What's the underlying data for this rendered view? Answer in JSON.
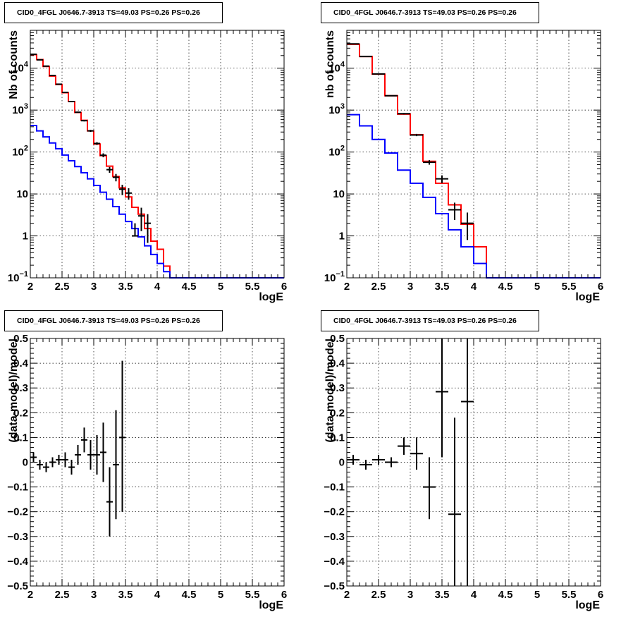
{
  "chart_data": [
    {
      "type": "line",
      "title": "CID0_4FGL J0646.7-3913 TS=49.03 PS=0.26 PS=0.26",
      "xlabel": "logE",
      "ylabel": "Nb of counts",
      "log_y": true,
      "xlim": [
        2,
        6
      ],
      "ylim": [
        0.1,
        80000
      ],
      "grid": true,
      "xticks": [
        "2",
        "2.5",
        "3",
        "3.5",
        "4",
        "4.5",
        "5",
        "5.5",
        "6"
      ],
      "yticks": [
        {
          "v": 0.1,
          "label": "10",
          "sup": "−1"
        },
        {
          "v": 1,
          "label": "1"
        },
        {
          "v": 10,
          "label": "10"
        },
        {
          "v": 100,
          "label": "10",
          "sup": "2"
        },
        {
          "v": 1000,
          "label": "10",
          "sup": "3"
        },
        {
          "v": 10000,
          "label": "10",
          "sup": "4"
        }
      ],
      "series": [
        {
          "style": "step",
          "color": "#ff0000",
          "bin_edges": [
            2,
            2.1,
            2.2,
            2.3,
            2.4,
            2.5,
            2.6,
            2.7,
            2.8,
            2.9,
            3.0,
            3.1,
            3.2,
            3.3,
            3.4,
            3.5,
            3.6,
            3.7,
            3.8,
            3.9,
            4.0,
            4.1,
            4.2,
            4.3,
            4.4,
            4.5,
            4.6,
            4.7,
            4.8,
            4.9,
            5.0,
            5.1,
            5.2,
            5.3,
            5.4,
            5.5,
            5.6,
            5.7,
            5.8,
            5.9,
            6.0
          ],
          "values": [
            21000,
            16000,
            11000,
            6500,
            4100,
            2600,
            1600,
            880,
            570,
            320,
            155,
            82,
            46,
            26,
            14,
            8.5,
            4.8,
            3.3,
            1.5,
            0.75,
            0.48,
            0.19,
            0.1,
            0.05,
            0.05,
            0.05,
            0.05,
            0.05,
            0.05,
            0.05,
            0.05,
            0.05,
            0.05,
            0.05,
            0.05,
            0.05,
            0.05,
            0.05,
            0.05,
            0.05
          ]
        },
        {
          "style": "step",
          "color": "#0000ff",
          "bin_edges": [
            2,
            2.1,
            2.2,
            2.3,
            2.4,
            2.5,
            2.6,
            2.7,
            2.8,
            2.9,
            3.0,
            3.1,
            3.2,
            3.3,
            3.4,
            3.5,
            3.6,
            3.7,
            3.8,
            3.9,
            4.0,
            4.1,
            4.2,
            4.3,
            4.4,
            4.5,
            4.6,
            4.7,
            4.8,
            4.9,
            5.0,
            5.1,
            5.2,
            5.3,
            5.4,
            5.5,
            5.6,
            5.7,
            5.8,
            5.9,
            6.0
          ],
          "values": [
            430,
            320,
            230,
            165,
            120,
            85,
            62,
            45,
            32,
            23,
            16,
            11,
            7.5,
            5,
            3.3,
            2.2,
            1.5,
            0.95,
            0.58,
            0.36,
            0.22,
            0.14,
            0.1,
            0.1,
            0.1,
            0.1,
            0.1,
            0.1,
            0.1,
            0.1,
            0.1,
            0.1,
            0.1,
            0.1,
            0.1,
            0.1,
            0.1,
            0.1,
            0.1,
            0.1
          ]
        },
        {
          "style": "points",
          "color": "#000000",
          "xerr": 0.05,
          "x": [
            2.05,
            2.15,
            2.25,
            2.35,
            2.45,
            2.55,
            2.65,
            2.75,
            2.85,
            2.95,
            3.05,
            3.15,
            3.25,
            3.35,
            3.45,
            3.55,
            3.65,
            3.75,
            3.85
          ],
          "y": [
            21500,
            15800,
            11200,
            6700,
            4150,
            2650,
            1600,
            890,
            560,
            320,
            160,
            84,
            38,
            25,
            13,
            10.5,
            1,
            3,
            2
          ],
          "err_lo": [
            21300,
            15650,
            11090,
            6620,
            4085,
            2600,
            1560,
            860,
            537,
            302,
            148,
            75,
            32,
            20,
            9.4,
            7.3,
            1,
            1.3,
            0.68
          ],
          "err_hi": [
            21700,
            15950,
            11310,
            6780,
            4215,
            2700,
            1640,
            920,
            583,
            338,
            172,
            93,
            44,
            30,
            16.6,
            13.7,
            2,
            4.7,
            3.3
          ]
        }
      ]
    },
    {
      "type": "line",
      "title": "CID0_4FGL J0646.7-3913 TS=49.03 PS=0.26 PS=0.26",
      "xlabel": "logE",
      "ylabel": "nb of counts",
      "log_y": true,
      "xlim": [
        2,
        6
      ],
      "ylim": [
        0.1,
        80000
      ],
      "grid": true,
      "xticks": [
        "2",
        "2.5",
        "3",
        "3.5",
        "4",
        "4.5",
        "5",
        "5.5",
        "6"
      ],
      "yticks": [
        {
          "v": 0.1,
          "label": "10",
          "sup": "−1"
        },
        {
          "v": 1,
          "label": "1"
        },
        {
          "v": 10,
          "label": "10"
        },
        {
          "v": 100,
          "label": "10",
          "sup": "2"
        },
        {
          "v": 1000,
          "label": "10",
          "sup": "3"
        },
        {
          "v": 10000,
          "label": "10",
          "sup": "4"
        }
      ],
      "series": [
        {
          "style": "step",
          "color": "#ff0000",
          "bin_edges": [
            2,
            2.2,
            2.4,
            2.6,
            2.8,
            3.0,
            3.2,
            3.4,
            3.6,
            3.8,
            4.0,
            4.2,
            4.4,
            4.6,
            4.8,
            5.0,
            5.2,
            5.4,
            5.6,
            5.8,
            6.0
          ],
          "values": [
            37000,
            19000,
            7200,
            2200,
            800,
            260,
            60,
            18,
            5.5,
            1.9,
            0.55,
            0.1,
            0.05,
            0.05,
            0.05,
            0.05,
            0.05,
            0.05,
            0.05,
            0.05
          ]
        },
        {
          "style": "step",
          "color": "#0000ff",
          "bin_edges": [
            2,
            2.2,
            2.4,
            2.6,
            2.8,
            3.0,
            3.2,
            3.4,
            3.6,
            3.8,
            4.0,
            4.2,
            4.4,
            4.6,
            4.8,
            5.0,
            5.2,
            5.4,
            5.6,
            5.8,
            6.0
          ],
          "values": [
            780,
            420,
            200,
            95,
            37,
            18,
            8.3,
            3.4,
            1.4,
            0.55,
            0.22,
            0.1,
            0.1,
            0.1,
            0.1,
            0.1,
            0.1,
            0.1,
            0.1,
            0.1
          ]
        },
        {
          "style": "points",
          "color": "#000000",
          "xerr": 0.1,
          "x": [
            2.1,
            2.3,
            2.5,
            2.7,
            2.9,
            3.1,
            3.3,
            3.5,
            3.7,
            3.9
          ],
          "y": [
            38000,
            19000,
            7300,
            2200,
            820,
            255,
            57,
            23,
            4.2,
            2
          ],
          "err_lo": [
            37800,
            18860,
            7215,
            2150,
            790,
            239,
            50,
            18.2,
            2.4,
            0.8
          ],
          "err_hi": [
            38200,
            19140,
            7385,
            2250,
            850,
            271,
            64,
            27.8,
            6.2,
            3.6
          ]
        }
      ]
    },
    {
      "type": "scatter",
      "title": "CID0_4FGL J0646.7-3913 TS=49.03 PS=0.26 PS=0.26",
      "xlabel": "logE",
      "ylabel": "(data-model)/model",
      "log_y": false,
      "xlim": [
        2,
        6
      ],
      "ylim": [
        -0.5,
        0.5
      ],
      "grid": true,
      "xticks": [
        "2",
        "2.5",
        "3",
        "3.5",
        "4",
        "4.5",
        "5",
        "5.5",
        "6"
      ],
      "yticks": [
        {
          "v": -0.5,
          "label": "−0.5"
        },
        {
          "v": -0.4,
          "label": "−0.4"
        },
        {
          "v": -0.3,
          "label": "−0.3"
        },
        {
          "v": -0.2,
          "label": "−0.2"
        },
        {
          "v": -0.1,
          "label": "−0.1"
        },
        {
          "v": 0,
          "label": "0"
        },
        {
          "v": 0.1,
          "label": "0.1"
        },
        {
          "v": 0.2,
          "label": "0.2"
        },
        {
          "v": 0.3,
          "label": "0.3"
        },
        {
          "v": 0.4,
          "label": "0.4"
        },
        {
          "v": 0.5,
          "label": "0.5"
        }
      ],
      "series": [
        {
          "style": "points",
          "color": "#000000",
          "xerr": 0.05,
          "x": [
            2.05,
            2.15,
            2.25,
            2.35,
            2.45,
            2.55,
            2.65,
            2.75,
            2.85,
            2.95,
            3.05,
            3.15,
            3.25,
            3.35,
            3.45
          ],
          "y": [
            0.02,
            -0.01,
            -0.02,
            0.0,
            0.01,
            0.01,
            -0.02,
            0.03,
            0.09,
            0.03,
            0.03,
            0.04,
            -0.16,
            -0.01,
            0.1
          ],
          "err_lo": [
            0.0,
            -0.03,
            -0.04,
            -0.02,
            -0.01,
            -0.02,
            -0.05,
            -0.01,
            0.04,
            -0.03,
            -0.05,
            -0.08,
            -0.3,
            -0.23,
            -0.2
          ],
          "err_hi": [
            0.04,
            0.01,
            0.0,
            0.02,
            0.03,
            0.04,
            0.01,
            0.07,
            0.14,
            0.09,
            0.11,
            0.16,
            -0.02,
            0.21,
            0.41
          ]
        }
      ]
    },
    {
      "type": "scatter",
      "title": "CID0_4FGL J0646.7-3913 TS=49.03 PS=0.26 PS=0.26",
      "xlabel": "logE",
      "ylabel": "(data-model)/model",
      "log_y": false,
      "xlim": [
        2,
        6
      ],
      "ylim": [
        -0.5,
        0.5
      ],
      "grid": true,
      "xticks": [
        "2",
        "2.5",
        "3",
        "3.5",
        "4",
        "4.5",
        "5",
        "5.5",
        "6"
      ],
      "yticks": [
        {
          "v": -0.5,
          "label": "−0.5"
        },
        {
          "v": -0.4,
          "label": "−0.4"
        },
        {
          "v": -0.3,
          "label": "−0.3"
        },
        {
          "v": -0.2,
          "label": "−0.2"
        },
        {
          "v": -0.1,
          "label": "−0.1"
        },
        {
          "v": 0,
          "label": "0"
        },
        {
          "v": 0.1,
          "label": "0.1"
        },
        {
          "v": 0.2,
          "label": "0.2"
        },
        {
          "v": 0.3,
          "label": "0.3"
        },
        {
          "v": 0.4,
          "label": "0.4"
        },
        {
          "v": 0.5,
          "label": "0.5"
        }
      ],
      "series": [
        {
          "style": "points",
          "color": "#000000",
          "xerr": 0.1,
          "x": [
            2.1,
            2.3,
            2.5,
            2.7,
            2.9,
            3.1,
            3.3,
            3.5,
            3.7,
            3.9
          ],
          "y": [
            0.01,
            -0.01,
            0.01,
            0.0,
            0.065,
            0.035,
            -0.1,
            0.285,
            -0.21,
            0.245
          ],
          "err_lo": [
            -0.01,
            -0.03,
            -0.01,
            -0.02,
            0.03,
            -0.03,
            -0.23,
            0.02,
            -0.6,
            -0.6
          ],
          "err_hi": [
            0.03,
            0.01,
            0.03,
            0.02,
            0.1,
            0.1,
            0.02,
            0.6,
            0.18,
            0.6
          ]
        }
      ]
    }
  ]
}
